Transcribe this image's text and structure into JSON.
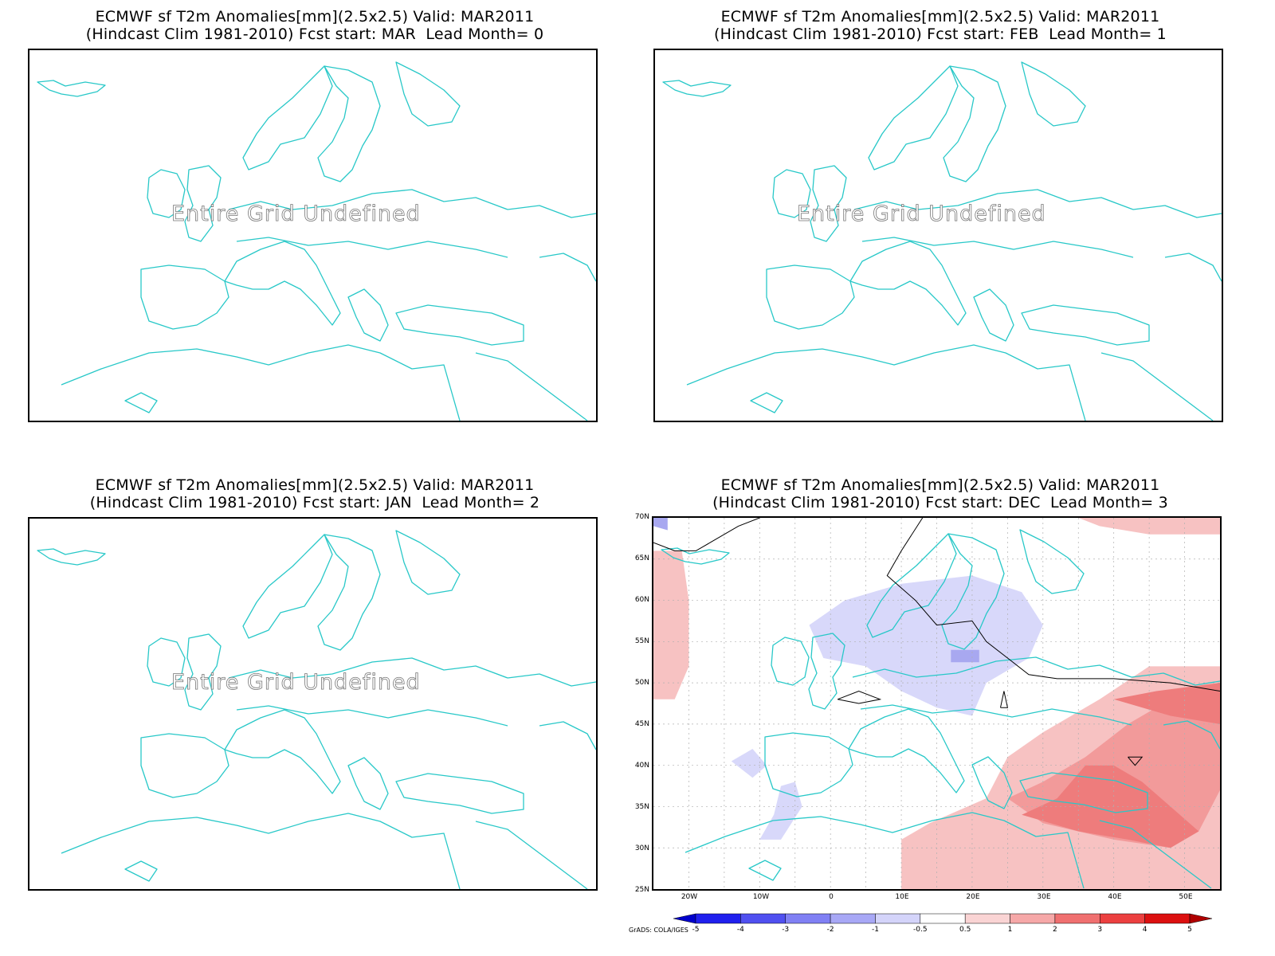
{
  "panels": [
    {
      "title_line1": "ECMWF sf T2m Anomalies[mm](2.5x2.5) Valid: MAR2011",
      "title_line2": "(Hindcast Clim 1981-2010) Fcst start: MAR  Lead Month= 0",
      "message": "Entire Grid Undefined"
    },
    {
      "title_line1": "ECMWF sf T2m Anomalies[mm](2.5x2.5) Valid: MAR2011",
      "title_line2": "(Hindcast Clim 1981-2010) Fcst start: FEB  Lead Month= 1",
      "message": "Entire Grid Undefined"
    },
    {
      "title_line1": "ECMWF sf T2m Anomalies[mm](2.5x2.5) Valid: MAR2011",
      "title_line2": "(Hindcast Clim 1981-2010) Fcst start: JAN  Lead Month= 2",
      "message": "Entire Grid Undefined"
    },
    {
      "title_line1": "ECMWF sf T2m Anomalies[mm](2.5x2.5) Valid: MAR2011",
      "title_line2": "(Hindcast Clim 1981-2010) Fcst start: DEC  Lead Month= 3",
      "message": ""
    }
  ],
  "map_axes": {
    "lat_labels": [
      "70N",
      "65N",
      "60N",
      "55N",
      "50N",
      "45N",
      "40N",
      "35N",
      "30N",
      "25N"
    ],
    "lon_labels": [
      "20W",
      "10W",
      "0",
      "10E",
      "20E",
      "30E",
      "40E",
      "50E"
    ]
  },
  "colorbar": {
    "labels": [
      "-5",
      "-4",
      "-3",
      "-2",
      "-1",
      "-0.5",
      "0.5",
      "1",
      "2",
      "3",
      "4",
      "5"
    ],
    "colors": [
      "#0000cc",
      "#2020ee",
      "#5050f0",
      "#8080f4",
      "#a8a8f6",
      "#d4d4fa",
      "#ffffff",
      "#fad4d4",
      "#f6a8a8",
      "#f07070",
      "#ec4040",
      "#dc1010",
      "#b00000"
    ]
  },
  "credit": "GrADS: COLA/IGES",
  "colors": {
    "coast": "#28c8c8",
    "positive_fill": "#f7c2c2",
    "positive_mid": "#f29a9a",
    "positive_strong": "#ee7c7c",
    "negative_fill": "#d8d8fa",
    "negative_mid": "#a8a8f0",
    "contour": "#000000",
    "grid": "#b0b0b0"
  }
}
